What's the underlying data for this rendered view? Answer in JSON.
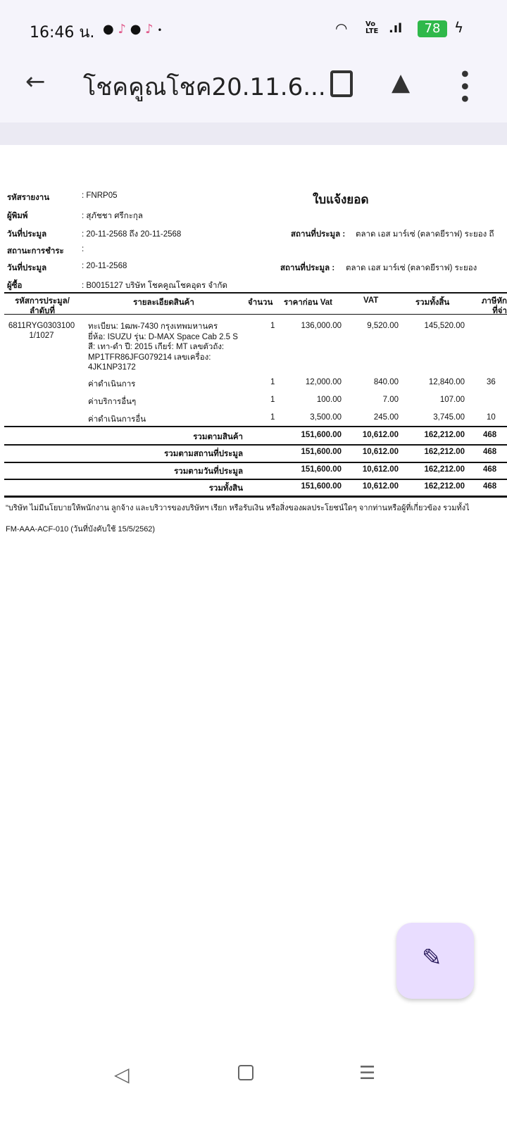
{
  "status_bar": {
    "time": "16:46 น.",
    "battery": "78",
    "notification_icons": [
      "line-icon",
      "tiktok-icon",
      "line-icon",
      "tiktok-icon",
      "dot-icon"
    ],
    "battery_color": "#2fb84a"
  },
  "toolbar": {
    "title": "โชคคูณโชค20.11.6...",
    "icons": [
      "back-arrow-icon",
      "find-in-document-icon",
      "drive-add-icon",
      "more-vert-icon"
    ]
  },
  "report": {
    "title": "ใบแจ้งยอด",
    "fields": [
      {
        "label": "รหัสรายงาน",
        "value": ": FNRP05"
      },
      {
        "label": "ผู้พิมพ์",
        "value": ": สุภัชชา ศรีกะกุล"
      },
      {
        "label": "วันที่ประมูล",
        "value": ": 20-11-2568 ถึง 20-11-2568"
      },
      {
        "label": "สถานะการชำระ",
        "value": ":"
      },
      {
        "label": "วันที่ประมูล",
        "value": ": 20-11-2568"
      },
      {
        "label": "ผู้ซื้อ",
        "value": ": B0015127 บริษัท โชคคูณโชคอุดร   จำกัด"
      }
    ],
    "location1": {
      "label": "สถานที่ประมูล :",
      "value": "ตลาด เอส มาร์เซ่ (ตลาดยีราฟ) ระยอง ถึ"
    },
    "location2": {
      "label": "สถานที่ประมูล :",
      "value": "ตลาด เอส มาร์เซ่ (ตลาดยีราฟ) ระยอง"
    },
    "columns": [
      "รหัสการประมูล/\nลำดับที่",
      "รายละเอียดสินค้า",
      "จำนวน",
      "ราคาก่อน Vat",
      "VAT",
      "รวมทั้งสิ้น",
      "ภาษีหัก\nที่จ่า"
    ],
    "item_code": "6811RYG0303100",
    "item_seq": "1/1027",
    "rows": [
      {
        "desc": "ทะเบียน: 1ฒพ-7430 กรุงเทพมหานคร\nยี่ห้อ: ISUZU รุ่น: D-MAX Space Cab 2.5 S\nสี: เทา-ดำ ปี: 2015 เกียร์: MT เลขตัวถัง:\nMP1TFR86JFG079214 เลขเครื่อง:\n4JK1NP3172",
        "qty": "1",
        "pre_vat": "136,000.00",
        "vat": "9,520.00",
        "total": "145,520.00",
        "wht": ""
      },
      {
        "desc": "ค่าดำเนินการ",
        "qty": "1",
        "pre_vat": "12,000.00",
        "vat": "840.00",
        "total": "12,840.00",
        "wht": "36"
      },
      {
        "desc": "ค่าบริการอื่นๆ",
        "qty": "1",
        "pre_vat": "100.00",
        "vat": "7.00",
        "total": "107.00",
        "wht": ""
      },
      {
        "desc": "ค่าดำเนินการอื่น",
        "qty": "1",
        "pre_vat": "3,500.00",
        "vat": "245.00",
        "total": "3,745.00",
        "wht": "10"
      }
    ],
    "totals": [
      {
        "label": "รวมตามสินค้า",
        "pre_vat": "151,600.00",
        "vat": "10,612.00",
        "total": "162,212.00",
        "wht": "468"
      },
      {
        "label": "รวมตามสถานที่ประมูล",
        "pre_vat": "151,600.00",
        "vat": "10,612.00",
        "total": "162,212.00",
        "wht": "468"
      },
      {
        "label": "รวมตามวันที่ประมูล",
        "pre_vat": "151,600.00",
        "vat": "10,612.00",
        "total": "162,212.00",
        "wht": "468"
      },
      {
        "label": "รวมทั้งสิน",
        "pre_vat": "151,600.00",
        "vat": "10,612.00",
        "total": "162,212.00",
        "wht": "468"
      }
    ],
    "footnote": "\"บริษัท ไม่มีนโยบายให้พนักงาน ลูกจ้าง และบริวารของบริษัทฯ เรียก หรือรับเงิน หรือสิ่งของผลประโยชน์ใดๆ จากท่านหรือผู้ที่เกี่ยวข้อง รวมทั้งไ",
    "form_code": "FM-AAA-ACF-010 (วันที่บังคับใช้ 15/5/2562)"
  },
  "fab": {
    "icon": "edit-signature-icon",
    "color": "#e9ddff"
  },
  "nav": {
    "icons": [
      "back-triangle-icon",
      "home-square-icon",
      "recents-menu-icon"
    ]
  }
}
